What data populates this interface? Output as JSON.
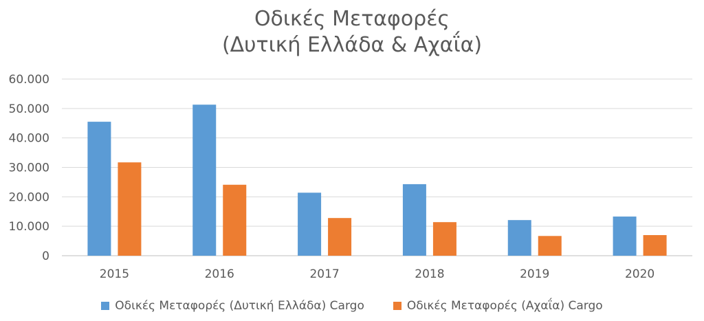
{
  "chart_data": {
    "type": "bar",
    "title": "Οδικές Μεταφορές",
    "subtitle": "(Δυτική Ελλάδα & Αχαΐα)",
    "categories": [
      "2015",
      "2016",
      "2017",
      "2018",
      "2019",
      "2020"
    ],
    "series": [
      {
        "name": "Οδικές Μεταφορές (Δυτική Ελλάδα) Cargo",
        "color": "#5B9BD5",
        "values": [
          45500,
          51300,
          21400,
          24300,
          12100,
          13300
        ]
      },
      {
        "name": "Οδικές Μεταφορές (Αχαΐα) Cargo",
        "color": "#ED7D31",
        "values": [
          31700,
          24100,
          12800,
          11400,
          6700,
          7000
        ]
      }
    ],
    "yticks": [
      "0",
      "10.000",
      "20.000",
      "30.000",
      "40.000",
      "50.000",
      "60.000"
    ],
    "ylim": [
      0,
      60000
    ],
    "grid": true,
    "legend": "bottom"
  }
}
